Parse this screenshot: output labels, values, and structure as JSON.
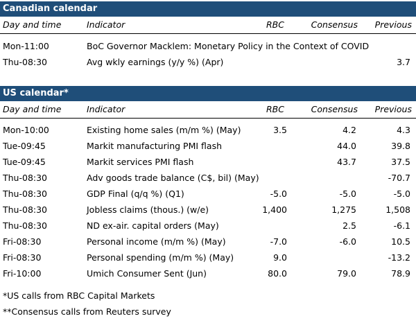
{
  "colors": {
    "header_bg": "#1f4e79",
    "header_text": "#ffffff"
  },
  "canada": {
    "title": "Canadian calendar",
    "headers": {
      "time": "Day and time",
      "indicator": "Indicator",
      "rbc": "RBC",
      "consensus": "Consensus",
      "previous": "Previous"
    },
    "rows": [
      {
        "time": "Mon-11:00",
        "indicator": "BoC Governor Macklem: Monetary Policy in the Context of COVID",
        "rbc": "",
        "consensus": "",
        "previous": ""
      },
      {
        "time": "Thu-08:30",
        "indicator": "Avg wkly earnings (y/y %) (Apr)",
        "rbc": "",
        "consensus": "",
        "previous": "3.7"
      }
    ]
  },
  "us": {
    "title": "US calendar*",
    "headers": {
      "time": "Day and time",
      "indicator": "Indicator",
      "rbc": "RBC",
      "consensus": "Consensus",
      "previous": "Previous"
    },
    "rows": [
      {
        "time": "Mon-10:00",
        "indicator": "Existing home sales (m/m %) (May)",
        "rbc": "3.5",
        "consensus": "4.2",
        "previous": "4.3"
      },
      {
        "time": "Tue-09:45",
        "indicator": "Markit manufacturing PMI flash",
        "rbc": "",
        "consensus": "44.0",
        "previous": "39.8"
      },
      {
        "time": "Tue-09:45",
        "indicator": "Markit services PMI flash",
        "rbc": "",
        "consensus": "43.7",
        "previous": "37.5"
      },
      {
        "time": "Thu-08:30",
        "indicator": "Adv goods trade balance (C$, bil) (May)",
        "rbc": "",
        "consensus": "",
        "previous": "-70.7"
      },
      {
        "time": "Thu-08:30",
        "indicator": "GDP Final (q/q %) (Q1)",
        "rbc": "-5.0",
        "consensus": "-5.0",
        "previous": "-5.0"
      },
      {
        "time": "Thu-08:30",
        "indicator": "Jobless claims (thous.) (w/e)",
        "rbc": "1,400",
        "consensus": "1,275",
        "previous": "1,508"
      },
      {
        "time": "Thu-08:30",
        "indicator": "ND ex-air. capital orders (May)",
        "rbc": "",
        "consensus": "2.5",
        "previous": "-6.1"
      },
      {
        "time": "Fri-08:30",
        "indicator": "Personal income (m/m %) (May)",
        "rbc": "-7.0",
        "consensus": "-6.0",
        "previous": "10.5"
      },
      {
        "time": "Fri-08:30",
        "indicator": "Personal spending (m/m %) (May)",
        "rbc": "9.0",
        "consensus": "",
        "previous": "-13.2"
      },
      {
        "time": "Fri-10:00",
        "indicator": "Umich Consumer Sent (Jun)",
        "rbc": "80.0",
        "consensus": "79.0",
        "previous": "78.9"
      }
    ]
  },
  "notes": [
    "*US calls from RBC Capital Markets",
    "**Consensus calls from Reuters survey"
  ]
}
